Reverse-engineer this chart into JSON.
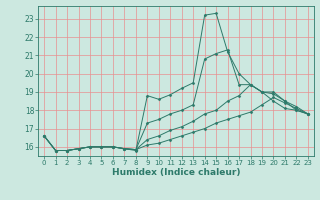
{
  "xlabel": "Humidex (Indice chaleur)",
  "ylabel": "",
  "bg_color": "#cce8e0",
  "line_color": "#2d7a6a",
  "grid_color": "#e89090",
  "xlim": [
    -0.5,
    23.5
  ],
  "ylim": [
    15.5,
    23.7
  ],
  "yticks": [
    16,
    17,
    18,
    19,
    20,
    21,
    22,
    23
  ],
  "xticks": [
    0,
    1,
    2,
    3,
    4,
    5,
    6,
    7,
    8,
    9,
    10,
    11,
    12,
    13,
    14,
    15,
    16,
    17,
    18,
    19,
    20,
    21,
    22,
    23
  ],
  "series": [
    [
      16.6,
      15.8,
      15.8,
      15.9,
      16.0,
      16.0,
      16.0,
      15.9,
      15.8,
      18.8,
      18.6,
      18.85,
      19.2,
      19.5,
      23.2,
      23.3,
      21.2,
      20.0,
      19.4,
      19.0,
      18.5,
      18.1,
      18.0,
      17.8
    ],
    [
      16.6,
      15.8,
      15.8,
      15.9,
      16.0,
      16.0,
      16.0,
      15.9,
      15.85,
      17.3,
      17.5,
      17.8,
      18.0,
      18.3,
      20.8,
      21.1,
      21.3,
      19.4,
      19.4,
      19.0,
      19.0,
      18.5,
      18.0,
      17.8
    ],
    [
      16.6,
      15.8,
      15.8,
      15.9,
      16.0,
      16.0,
      16.0,
      15.9,
      15.85,
      16.4,
      16.6,
      16.9,
      17.1,
      17.4,
      17.8,
      18.0,
      18.5,
      18.8,
      19.4,
      19.0,
      18.9,
      18.5,
      18.2,
      17.8
    ],
    [
      16.6,
      15.8,
      15.8,
      15.9,
      16.0,
      16.0,
      16.0,
      15.9,
      15.85,
      16.1,
      16.2,
      16.4,
      16.6,
      16.8,
      17.0,
      17.3,
      17.5,
      17.7,
      17.9,
      18.3,
      18.7,
      18.4,
      18.1,
      17.8
    ]
  ]
}
